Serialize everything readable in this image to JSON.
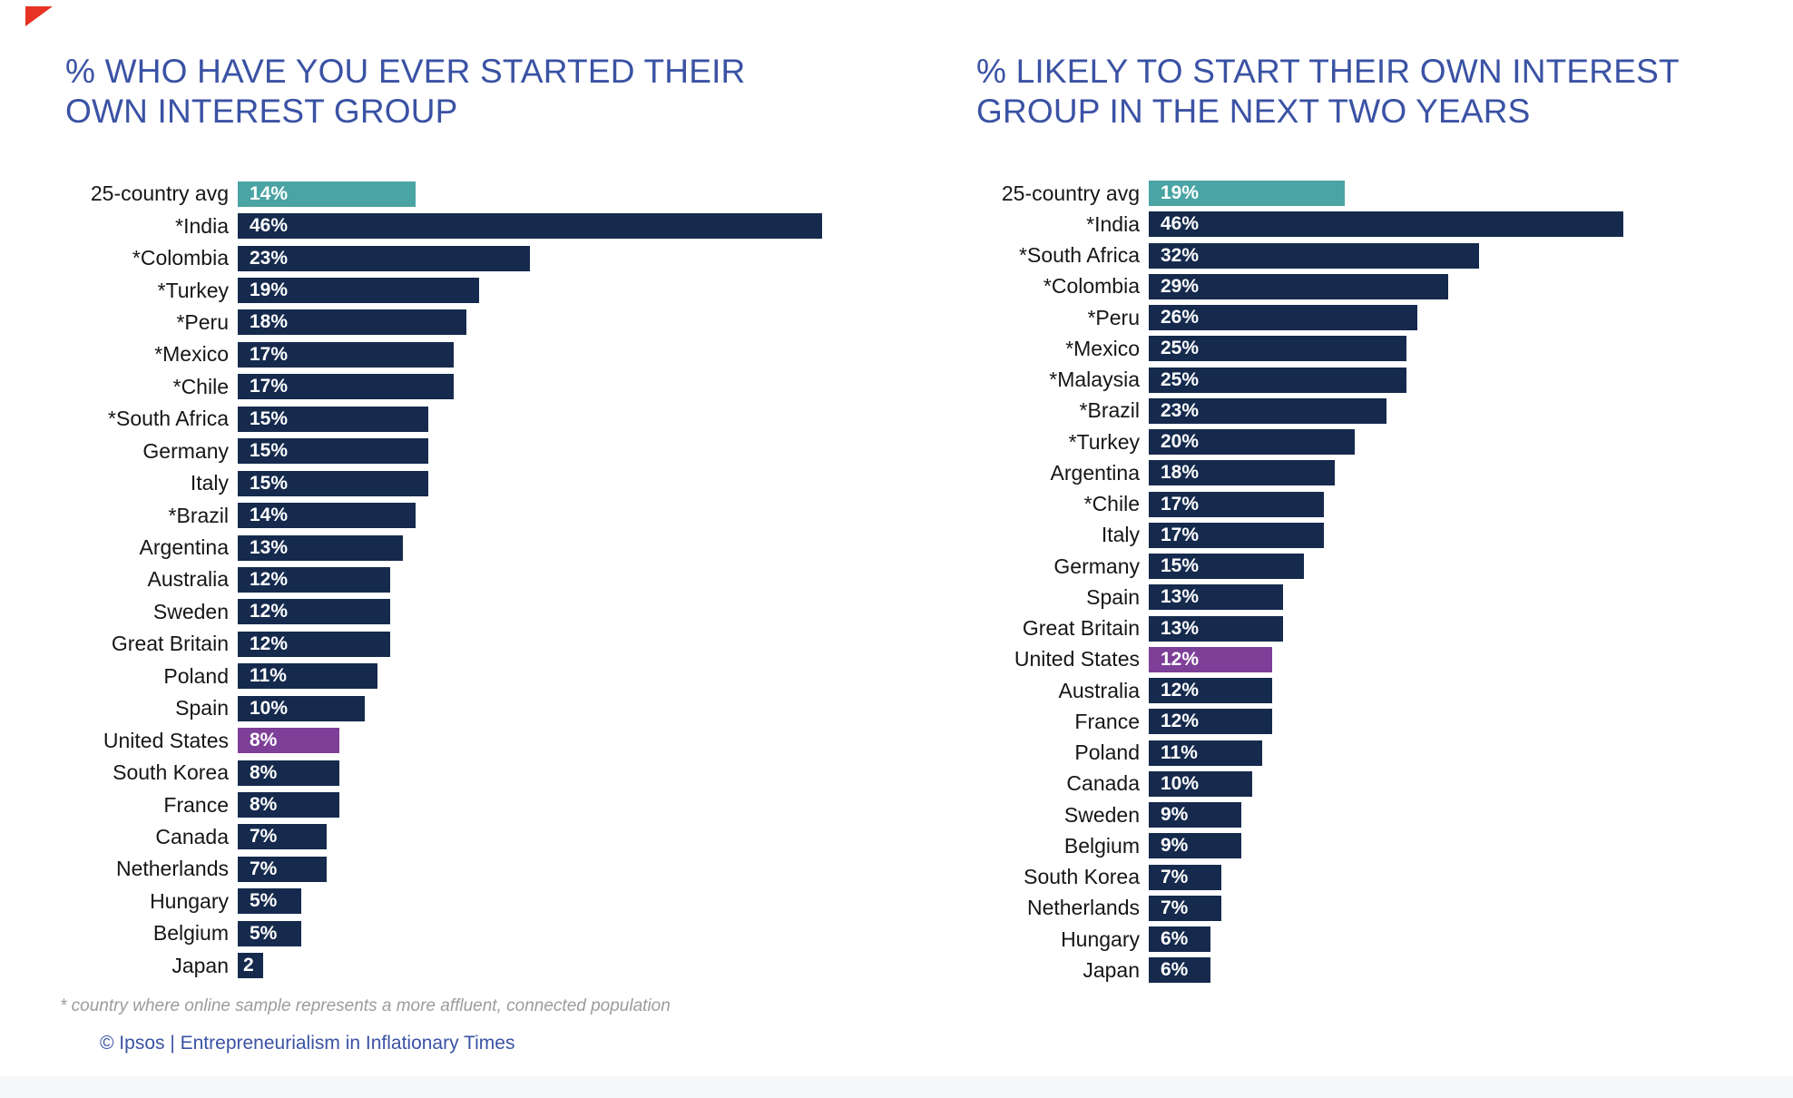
{
  "page": {
    "footnote": "* country where online sample represents a more affluent, connected population",
    "source": "© Ipsos | Entrepreneurialism in Inflationary Times"
  },
  "colors": {
    "navy": "#152A4D",
    "teal": "#4BA4A4",
    "purple": "#7D3F98",
    "title_blue": "#3A52A4",
    "label_black": "#161616",
    "footnote_gray": "#9C9C9C",
    "brand_red": "#E63323",
    "value_text": "#FFFFFF"
  },
  "chart_data": [
    {
      "type": "bar",
      "orientation": "horizontal",
      "title": "% WHO HAVE YOU EVER STARTED THEIR OWN INTEREST GROUP",
      "value_suffix": "%",
      "xlim": [
        0,
        46
      ],
      "grid": false,
      "legend": false,
      "rows": [
        {
          "label": "25-country avg",
          "value": 14,
          "display": "14%",
          "color": "teal"
        },
        {
          "label": "*India",
          "value": 46,
          "display": "46%",
          "color": "navy"
        },
        {
          "label": "*Colombia",
          "value": 23,
          "display": "23%",
          "color": "navy"
        },
        {
          "label": "*Turkey",
          "value": 19,
          "display": "19%",
          "color": "navy"
        },
        {
          "label": "*Peru",
          "value": 18,
          "display": "18%",
          "color": "navy"
        },
        {
          "label": "*Mexico",
          "value": 17,
          "display": "17%",
          "color": "navy"
        },
        {
          "label": "*Chile",
          "value": 17,
          "display": "17%",
          "color": "navy"
        },
        {
          "label": "*South Africa",
          "value": 15,
          "display": "15%",
          "color": "navy"
        },
        {
          "label": "Germany",
          "value": 15,
          "display": "15%",
          "color": "navy"
        },
        {
          "label": "Italy",
          "value": 15,
          "display": "15%",
          "color": "navy"
        },
        {
          "label": "*Brazil",
          "value": 14,
          "display": "14%",
          "color": "navy"
        },
        {
          "label": "Argentina",
          "value": 13,
          "display": "13%",
          "color": "navy"
        },
        {
          "label": "Australia",
          "value": 12,
          "display": "12%",
          "color": "navy"
        },
        {
          "label": "Sweden",
          "value": 12,
          "display": "12%",
          "color": "navy"
        },
        {
          "label": "Great Britain",
          "value": 12,
          "display": "12%",
          "color": "navy"
        },
        {
          "label": "Poland",
          "value": 11,
          "display": "11%",
          "color": "navy"
        },
        {
          "label": "Spain",
          "value": 10,
          "display": "10%",
          "color": "navy"
        },
        {
          "label": "United States",
          "value": 8,
          "display": "8%",
          "color": "purple"
        },
        {
          "label": "South Korea",
          "value": 8,
          "display": "8%",
          "color": "navy"
        },
        {
          "label": "France",
          "value": 8,
          "display": "8%",
          "color": "navy"
        },
        {
          "label": "Canada",
          "value": 7,
          "display": "7%",
          "color": "navy"
        },
        {
          "label": "Netherlands",
          "value": 7,
          "display": "7%",
          "color": "navy"
        },
        {
          "label": "Hungary",
          "value": 5,
          "display": "5%",
          "color": "navy"
        },
        {
          "label": "Belgium",
          "value": 5,
          "display": "5%",
          "color": "navy"
        },
        {
          "label": "Japan",
          "value": 2,
          "display": "2",
          "color": "navy"
        }
      ]
    },
    {
      "type": "bar",
      "orientation": "horizontal",
      "title": "% LIKELY TO START THEIR OWN INTEREST GROUP IN THE NEXT TWO YEARS",
      "value_suffix": "%",
      "xlim": [
        0,
        46
      ],
      "grid": false,
      "legend": false,
      "rows": [
        {
          "label": "25-country avg",
          "value": 19,
          "display": "19%",
          "color": "teal"
        },
        {
          "label": "*India",
          "value": 46,
          "display": "46%",
          "color": "navy"
        },
        {
          "label": "*South Africa",
          "value": 32,
          "display": "32%",
          "color": "navy"
        },
        {
          "label": "*Colombia",
          "value": 29,
          "display": "29%",
          "color": "navy"
        },
        {
          "label": "*Peru",
          "value": 26,
          "display": "26%",
          "color": "navy"
        },
        {
          "label": "*Mexico",
          "value": 25,
          "display": "25%",
          "color": "navy"
        },
        {
          "label": "*Malaysia",
          "value": 25,
          "display": "25%",
          "color": "navy"
        },
        {
          "label": "*Brazil",
          "value": 23,
          "display": "23%",
          "color": "navy"
        },
        {
          "label": "*Turkey",
          "value": 20,
          "display": "20%",
          "color": "navy"
        },
        {
          "label": "Argentina",
          "value": 18,
          "display": "18%",
          "color": "navy"
        },
        {
          "label": "*Chile",
          "value": 17,
          "display": "17%",
          "color": "navy"
        },
        {
          "label": "Italy",
          "value": 17,
          "display": "17%",
          "color": "navy"
        },
        {
          "label": "Germany",
          "value": 15,
          "display": "15%",
          "color": "navy"
        },
        {
          "label": "Spain",
          "value": 13,
          "display": "13%",
          "color": "navy"
        },
        {
          "label": "Great Britain",
          "value": 13,
          "display": "13%",
          "color": "navy"
        },
        {
          "label": "United States",
          "value": 12,
          "display": "12%",
          "color": "purple"
        },
        {
          "label": "Australia",
          "value": 12,
          "display": "12%",
          "color": "navy"
        },
        {
          "label": "France",
          "value": 12,
          "display": "12%",
          "color": "navy"
        },
        {
          "label": "Poland",
          "value": 11,
          "display": "11%",
          "color": "navy"
        },
        {
          "label": "Canada",
          "value": 10,
          "display": "10%",
          "color": "navy"
        },
        {
          "label": "Sweden",
          "value": 9,
          "display": "9%",
          "color": "navy"
        },
        {
          "label": "Belgium",
          "value": 9,
          "display": "9%",
          "color": "navy"
        },
        {
          "label": "South Korea",
          "value": 7,
          "display": "7%",
          "color": "navy"
        },
        {
          "label": "Netherlands",
          "value": 7,
          "display": "7%",
          "color": "navy"
        },
        {
          "label": "Hungary",
          "value": 6,
          "display": "6%",
          "color": "navy"
        },
        {
          "label": "Japan",
          "value": 6,
          "display": "6%",
          "color": "navy"
        }
      ]
    }
  ]
}
